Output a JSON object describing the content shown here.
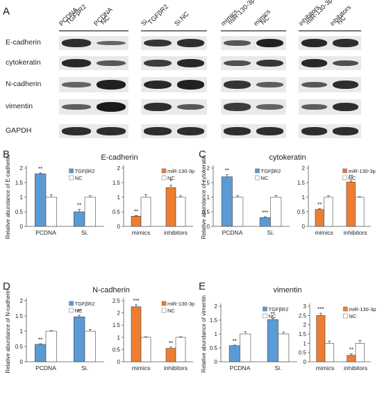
{
  "panel_a": {
    "letter": "A",
    "groups": [
      {
        "lanes": [
          "PCDNA TGFβR2",
          "PCDNA NC"
        ]
      },
      {
        "lanes": [
          "Si. TGFβR2",
          "Si.NC"
        ]
      },
      {
        "lanes": [
          "mimics miR-130-3p",
          "mimics NC"
        ]
      },
      {
        "lanes": [
          "inhibitors miR-130-3p",
          "inhibitors NC"
        ]
      }
    ],
    "rows": [
      {
        "label": "E-cadherin"
      },
      {
        "label": "cytokeratin"
      },
      {
        "label": "N-cadherin"
      },
      {
        "label": "vimentin"
      },
      {
        "label": "GAPDH"
      }
    ],
    "band_intensity": [
      [
        [
          0.85,
          0.45
        ],
        [
          0.8,
          0.85
        ],
        [
          0.55,
          0.95
        ],
        [
          0.9,
          0.85
        ]
      ],
      [
        [
          0.9,
          0.55
        ],
        [
          0.75,
          0.9
        ],
        [
          0.6,
          0.8
        ],
        [
          0.9,
          0.6
        ]
      ],
      [
        [
          0.45,
          0.95
        ],
        [
          0.9,
          0.95
        ],
        [
          0.8,
          0.5
        ],
        [
          0.55,
          0.85
        ]
      ],
      [
        [
          0.5,
          1.0
        ],
        [
          0.85,
          0.55
        ],
        [
          0.75,
          0.45
        ],
        [
          0.5,
          0.85
        ]
      ],
      [
        [
          0.85,
          0.85
        ],
        [
          0.85,
          0.85
        ],
        [
          0.85,
          0.85
        ],
        [
          0.85,
          0.85
        ]
      ]
    ]
  },
  "colors": {
    "blue": "#5b9bd5",
    "orange": "#ed7d31",
    "white": "#ffffff",
    "grey_bg": "#e9e9e9"
  },
  "chart_data": [
    {
      "panel": "B",
      "type": "bar",
      "title": "E-cadherin",
      "ylabel": "Relative abundance of E-cadherin",
      "ylim": [
        0,
        2
      ],
      "yticks": [
        0,
        0.5,
        1,
        1.5,
        2
      ],
      "categories": [
        "PCDNA",
        "Si."
      ],
      "series": [
        {
          "name": "TGFβR2",
          "color": "#5b9bd5",
          "values": [
            1.8,
            0.5
          ],
          "errors": [
            0.03,
            0.08
          ],
          "sig": [
            "**",
            "**"
          ]
        },
        {
          "name": "NC",
          "color": "#ffffff",
          "values": [
            1.0,
            1.0
          ],
          "errors": [
            0.08,
            0.05
          ],
          "sig": [
            "",
            ""
          ]
        }
      ]
    },
    {
      "panel": "B",
      "type": "bar",
      "ylim": [
        0,
        2
      ],
      "yticks": [
        0,
        0.5,
        1,
        1.5,
        2
      ],
      "categories": [
        "mimics",
        "inhibitors"
      ],
      "series": [
        {
          "name": "miR-130-3p",
          "color": "#ed7d31",
          "values": [
            0.35,
            1.33
          ],
          "errors": [
            0.02,
            0.08
          ],
          "sig": [
            "**",
            "*"
          ]
        },
        {
          "name": "NC",
          "color": "#ffffff",
          "values": [
            1.0,
            1.0
          ],
          "errors": [
            0.08,
            0.05
          ],
          "sig": [
            "",
            ""
          ]
        }
      ]
    },
    {
      "panel": "C",
      "type": "bar",
      "title": "cytokeratin",
      "ylabel": "Relative abundance of cytokeratin",
      "ylim": [
        0,
        2
      ],
      "yticks": [
        0,
        0.5,
        1,
        1.5,
        2
      ],
      "categories": [
        "PCDNA",
        "Si."
      ],
      "series": [
        {
          "name": "TGFβR2",
          "color": "#5b9bd5",
          "values": [
            1.7,
            0.3
          ],
          "errors": [
            0.07,
            0.03
          ],
          "sig": [
            "**",
            "***"
          ]
        },
        {
          "name": "NC",
          "color": "#ffffff",
          "values": [
            1.0,
            1.0
          ],
          "errors": [
            0.05,
            0.06
          ],
          "sig": [
            "",
            ""
          ]
        }
      ]
    },
    {
      "panel": "C",
      "type": "bar",
      "ylim": [
        0,
        2
      ],
      "yticks": [
        0,
        0.5,
        1,
        1.5,
        2
      ],
      "categories": [
        "mimics",
        "inhibitors"
      ],
      "series": [
        {
          "name": "miR-130-3p",
          "color": "#ed7d31",
          "values": [
            0.58,
            1.52
          ],
          "errors": [
            0.03,
            0.04
          ],
          "sig": [
            "**",
            "**"
          ]
        },
        {
          "name": "NC",
          "color": "#ffffff",
          "values": [
            1.0,
            1.0
          ],
          "errors": [
            0.05,
            0.02
          ],
          "sig": [
            "",
            ""
          ]
        }
      ]
    },
    {
      "panel": "D",
      "type": "bar",
      "title": "N-cadherin",
      "ylabel": "Relative abundance of N-cadherin",
      "ylim": [
        0,
        2
      ],
      "yticks": [
        0,
        0.5,
        1,
        1.5,
        2
      ],
      "categories": [
        "PCDNA",
        "Si."
      ],
      "series": [
        {
          "name": "TGFβR2",
          "color": "#5b9bd5",
          "values": [
            0.57,
            1.47
          ],
          "errors": [
            0.02,
            0.05
          ],
          "sig": [
            "**",
            "**"
          ]
        },
        {
          "name": "NC",
          "color": "#ffffff",
          "values": [
            1.0,
            1.0
          ],
          "errors": [
            0.02,
            0.06
          ],
          "sig": [
            "",
            ""
          ]
        }
      ]
    },
    {
      "panel": "D",
      "type": "bar",
      "ylim": [
        0,
        2.5
      ],
      "yticks": [
        0,
        0.5,
        1,
        1.5,
        2,
        2.5
      ],
      "categories": [
        "mimics",
        "inhibitors"
      ],
      "series": [
        {
          "name": "miR-130-3p",
          "color": "#ed7d31",
          "values": [
            2.25,
            0.55
          ],
          "errors": [
            0.08,
            0.05
          ],
          "sig": [
            "***",
            "**"
          ]
        },
        {
          "name": "NC",
          "color": "#ffffff",
          "values": [
            1.0,
            1.0
          ],
          "errors": [
            0.02,
            0.02
          ],
          "sig": [
            "",
            ""
          ]
        }
      ]
    },
    {
      "panel": "E",
      "type": "bar",
      "title": "vimentin",
      "ylabel": "Relative abundance of vimentin",
      "ylim": [
        0,
        2
      ],
      "yticks": [
        0,
        0.5,
        1,
        1.5,
        2
      ],
      "categories": [
        "PCDNA",
        "Si."
      ],
      "series": [
        {
          "name": "TGFβR2",
          "color": "#5b9bd5",
          "values": [
            0.58,
            1.52
          ],
          "errors": [
            0.02,
            0.05
          ],
          "sig": [
            "**",
            "**"
          ]
        },
        {
          "name": "NC",
          "color": "#ffffff",
          "values": [
            1.0,
            1.0
          ],
          "errors": [
            0.08,
            0.07
          ],
          "sig": [
            "",
            ""
          ]
        }
      ]
    },
    {
      "panel": "E",
      "type": "bar",
      "ylim": [
        0,
        3
      ],
      "yticks": [
        0,
        0.5,
        1,
        1.5,
        2,
        2.5,
        3
      ],
      "categories": [
        "mimics",
        "inhibitors"
      ],
      "series": [
        {
          "name": "miR-130-3p",
          "color": "#ed7d31",
          "values": [
            2.5,
            0.35
          ],
          "errors": [
            0.12,
            0.08
          ],
          "sig": [
            "***",
            "**"
          ]
        },
        {
          "name": "NC",
          "color": "#ffffff",
          "values": [
            1.0,
            1.0
          ],
          "errors": [
            0.12,
            0.15
          ],
          "sig": [
            "",
            ""
          ]
        }
      ]
    }
  ]
}
